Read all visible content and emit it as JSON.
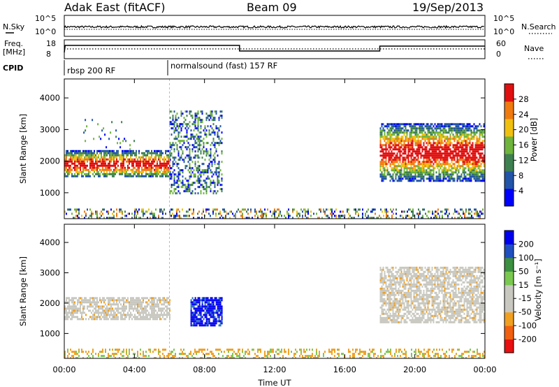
{
  "header": {
    "title": "Adak East (fitACF)",
    "beam": "Beam 09",
    "date": "19/Sep/2013"
  },
  "noise_panel": {
    "left_label": "N.Sky",
    "right_label": "N.Search",
    "left_ticks": [
      "10^5",
      "10^0"
    ],
    "right_ticks": [
      "10^5",
      "10^0"
    ]
  },
  "freq_panel": {
    "left_label_1": "Freq.",
    "left_label_2": "[MHz]",
    "left_ticks": [
      "18",
      "8"
    ],
    "right_label": "Nave",
    "right_ticks": [
      "60",
      "0"
    ]
  },
  "cpid": {
    "label": "CPID",
    "segments": [
      {
        "start_hour": 0,
        "text": "rbsp 200 RF"
      },
      {
        "start_hour": 6,
        "text": "normalsound (fast) 157 RF"
      }
    ]
  },
  "chart_data": [
    {
      "type": "heatmap",
      "name": "power",
      "xlabel": "",
      "ylabel": "Slant Range [km]",
      "xlim": [
        0,
        24
      ],
      "ylim": [
        180,
        4600
      ],
      "yticks": [
        "4000",
        "3000",
        "2000",
        "1000"
      ],
      "colorbar": {
        "label": "Power [dB]",
        "ticks": [
          "28",
          "24",
          "20",
          "16",
          "12",
          "8",
          "4"
        ],
        "colors": [
          "#0000ff",
          "#2255a8",
          "#3f8050",
          "#6fb43c",
          "#f0c010",
          "#f07a10",
          "#e01010"
        ]
      },
      "regions": [
        {
          "start_hour": 0.0,
          "end_hour": 6.0,
          "range_km": [
            1500,
            2350
          ],
          "level": "high"
        },
        {
          "start_hour": 1.0,
          "end_hour": 4.0,
          "range_km": [
            2400,
            3400
          ],
          "level": "sparse"
        },
        {
          "start_hour": 6.0,
          "end_hour": 9.0,
          "range_km": [
            1000,
            3600
          ],
          "level": "mid"
        },
        {
          "start_hour": 18.0,
          "end_hour": 24.0,
          "range_km": [
            1400,
            3200
          ],
          "level": "high"
        },
        {
          "start_hour": 0.0,
          "end_hour": 24.0,
          "range_km": [
            180,
            500
          ],
          "level": "ground"
        }
      ]
    },
    {
      "type": "heatmap",
      "name": "velocity",
      "xlabel": "Time UT",
      "ylabel": "Slant Range [km]",
      "xlim": [
        0,
        24
      ],
      "ylim": [
        180,
        4600
      ],
      "xticks": [
        "00:00",
        "04:00",
        "08:00",
        "12:00",
        "16:00",
        "20:00",
        "00:00"
      ],
      "yticks": [
        "4000",
        "3000",
        "2000",
        "1000"
      ],
      "colorbar": {
        "label": "Velocity [m s⁻¹]",
        "ticks": [
          "200",
          "100",
          "50",
          "15",
          "-15",
          "-50",
          "-100",
          "-200"
        ],
        "colors": [
          "#e81010",
          "#f06010",
          "#f0a020",
          "#c8c8c0",
          "#c8c8c0",
          "#7ac850",
          "#3c9040",
          "#2050c0",
          "#0000ee"
        ]
      },
      "regions": [
        {
          "start_hour": 0.0,
          "end_hour": 6.0,
          "range_km": [
            1500,
            2200
          ],
          "velocity": "near-zero"
        },
        {
          "start_hour": 7.2,
          "end_hour": 9.0,
          "range_km": [
            1300,
            2200
          ],
          "velocity": 200
        },
        {
          "start_hour": 18.0,
          "end_hour": 24.0,
          "range_km": [
            1400,
            3200
          ],
          "velocity": "near-zero"
        },
        {
          "start_hour": 0.0,
          "end_hour": 24.0,
          "range_km": [
            180,
            500
          ],
          "velocity": -50
        }
      ]
    }
  ]
}
